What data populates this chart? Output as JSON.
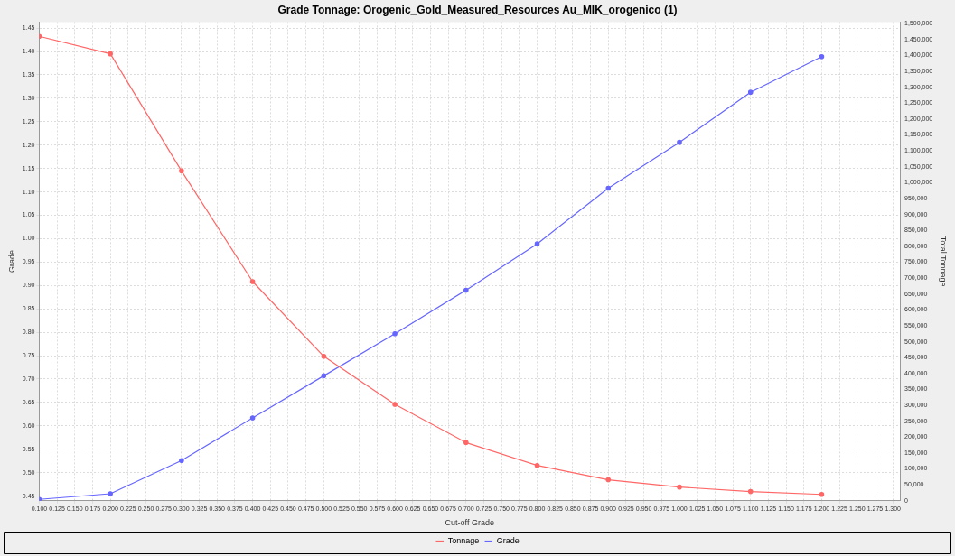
{
  "chart_data": {
    "type": "line",
    "title": "Grade Tonnage: Orogenic_Gold_Measured_Resources Au_MIK_orogenico (1)",
    "xlabel": "Cut-off Grade",
    "ylabel": "Grade",
    "y2label": "Total Tonnage",
    "x": [
      0.1,
      0.2,
      0.3,
      0.4,
      0.5,
      0.6,
      0.7,
      0.8,
      0.9,
      1.0,
      1.1,
      1.2
    ],
    "series": [
      {
        "name": "Tonnage",
        "color": "#ff6666",
        "axis": "y2",
        "values": [
          1460000,
          1405000,
          1037000,
          689000,
          454000,
          303000,
          183000,
          111000,
          66000,
          43000,
          29000,
          20000
        ]
      },
      {
        "name": "Grade",
        "color": "#6666ff",
        "values": [
          0.443,
          0.455,
          0.526,
          0.617,
          0.707,
          0.797,
          0.89,
          0.989,
          1.108,
          1.206,
          1.313,
          1.389
        ]
      }
    ],
    "xlim": [
      0.1,
      1.31
    ],
    "xticks": [
      {
        "value": 0.1,
        "label": "0.100"
      },
      {
        "value": 0.125,
        "label": "0.125"
      },
      {
        "value": 0.15,
        "label": "0.150"
      },
      {
        "value": 0.175,
        "label": "0.175"
      },
      {
        "value": 0.2,
        "label": "0.200"
      },
      {
        "value": 0.225,
        "label": "0.225"
      },
      {
        "value": 0.25,
        "label": "0.250"
      },
      {
        "value": 0.275,
        "label": "0.275"
      },
      {
        "value": 0.3,
        "label": "0.300"
      },
      {
        "value": 0.325,
        "label": "0.325"
      },
      {
        "value": 0.35,
        "label": "0.350"
      },
      {
        "value": 0.375,
        "label": "0.375"
      },
      {
        "value": 0.4,
        "label": "0.400"
      },
      {
        "value": 0.425,
        "label": "0.425"
      },
      {
        "value": 0.45,
        "label": "0.450"
      },
      {
        "value": 0.475,
        "label": "0.475"
      },
      {
        "value": 0.5,
        "label": "0.500"
      },
      {
        "value": 0.525,
        "label": "0.525"
      },
      {
        "value": 0.55,
        "label": "0.550"
      },
      {
        "value": 0.575,
        "label": "0.575"
      },
      {
        "value": 0.6,
        "label": "0.600"
      },
      {
        "value": 0.625,
        "label": "0.625"
      },
      {
        "value": 0.65,
        "label": "0.650"
      },
      {
        "value": 0.675,
        "label": "0.675"
      },
      {
        "value": 0.7,
        "label": "0.700"
      },
      {
        "value": 0.725,
        "label": "0.725"
      },
      {
        "value": 0.75,
        "label": "0.750"
      },
      {
        "value": 0.775,
        "label": "0.775"
      },
      {
        "value": 0.8,
        "label": "0.800"
      },
      {
        "value": 0.825,
        "label": "0.825"
      },
      {
        "value": 0.85,
        "label": "0.850"
      },
      {
        "value": 0.875,
        "label": "0.875"
      },
      {
        "value": 0.9,
        "label": "0.900"
      },
      {
        "value": 0.925,
        "label": "0.925"
      },
      {
        "value": 0.95,
        "label": "0.950"
      },
      {
        "value": 0.975,
        "label": "0.975"
      },
      {
        "value": 1.0,
        "label": "1.000"
      },
      {
        "value": 1.025,
        "label": "1.025"
      },
      {
        "value": 1.05,
        "label": "1.050"
      },
      {
        "value": 1.075,
        "label": "1.075"
      },
      {
        "value": 1.1,
        "label": "1.100"
      },
      {
        "value": 1.125,
        "label": "1.125"
      },
      {
        "value": 1.15,
        "label": "1.150"
      },
      {
        "value": 1.175,
        "label": "1.175"
      },
      {
        "value": 1.2,
        "label": "1.200"
      },
      {
        "value": 1.225,
        "label": "1.225"
      },
      {
        "value": 1.25,
        "label": "1.250"
      },
      {
        "value": 1.275,
        "label": "1.275"
      },
      {
        "value": 1.3,
        "label": "1.300"
      }
    ],
    "ylim": [
      0.44,
      1.463
    ],
    "yticks": [
      {
        "value": 0.45,
        "label": "0.45"
      },
      {
        "value": 0.5,
        "label": "0.50"
      },
      {
        "value": 0.55,
        "label": "0.55"
      },
      {
        "value": 0.6,
        "label": "0.60"
      },
      {
        "value": 0.65,
        "label": "0.65"
      },
      {
        "value": 0.7,
        "label": "0.70"
      },
      {
        "value": 0.75,
        "label": "0.75"
      },
      {
        "value": 0.8,
        "label": "0.80"
      },
      {
        "value": 0.85,
        "label": "0.85"
      },
      {
        "value": 0.9,
        "label": "0.90"
      },
      {
        "value": 0.95,
        "label": "0.95"
      },
      {
        "value": 1.0,
        "label": "1.00"
      },
      {
        "value": 1.05,
        "label": "1.05"
      },
      {
        "value": 1.1,
        "label": "1.10"
      },
      {
        "value": 1.15,
        "label": "1.15"
      },
      {
        "value": 1.2,
        "label": "1.20"
      },
      {
        "value": 1.25,
        "label": "1.25"
      },
      {
        "value": 1.3,
        "label": "1.30"
      },
      {
        "value": 1.35,
        "label": "1.35"
      },
      {
        "value": 1.4,
        "label": "1.40"
      },
      {
        "value": 1.45,
        "label": "1.45"
      }
    ],
    "y2lim": [
      0,
      1505000
    ],
    "y2ticks": [
      0,
      {
        "value": 50000,
        "label": "50,000"
      },
      {
        "value": 100000,
        "label": "100,000"
      },
      {
        "value": 150000,
        "label": "150,000"
      },
      {
        "value": 200000,
        "label": "200,000"
      },
      {
        "value": 250000,
        "label": "250,000"
      },
      {
        "value": 300000,
        "label": "300,000"
      },
      {
        "value": 350000,
        "label": "350,000"
      },
      {
        "value": 400000,
        "label": "400,000"
      },
      {
        "value": 450000,
        "label": "450,000"
      },
      {
        "value": 500000,
        "label": "500,000"
      },
      {
        "value": 550000,
        "label": "550,000"
      },
      {
        "value": 600000,
        "label": "600,000"
      },
      {
        "value": 650000,
        "label": "650,000"
      },
      {
        "value": 700000,
        "label": "700,000"
      },
      {
        "value": 750000,
        "label": "750,000"
      },
      {
        "value": 800000,
        "label": "800,000"
      },
      {
        "value": 850000,
        "label": "850,000"
      },
      {
        "value": 900000,
        "label": "900,000"
      },
      {
        "value": 950000,
        "label": "950,000"
      },
      {
        "value": 1000000,
        "label": "1,000,000"
      },
      {
        "value": 1050000,
        "label": "1,050,000"
      },
      {
        "value": 1100000,
        "label": "1,100,000"
      },
      {
        "value": 1150000,
        "label": "1,150,000"
      },
      {
        "value": 1200000,
        "label": "1,200,000"
      },
      {
        "value": 1250000,
        "label": "1,250,000"
      },
      {
        "value": 1300000,
        "label": "1,300,000"
      },
      {
        "value": 1350000,
        "label": "1,350,000"
      },
      {
        "value": 1400000,
        "label": "1,400,000"
      },
      {
        "value": 1450000,
        "label": "1,450,000"
      },
      {
        "value": 1500000,
        "label": "1,500,000"
      }
    ],
    "grid": true,
    "legend": "bottom",
    "marker": "circle",
    "line_style": "solid"
  }
}
